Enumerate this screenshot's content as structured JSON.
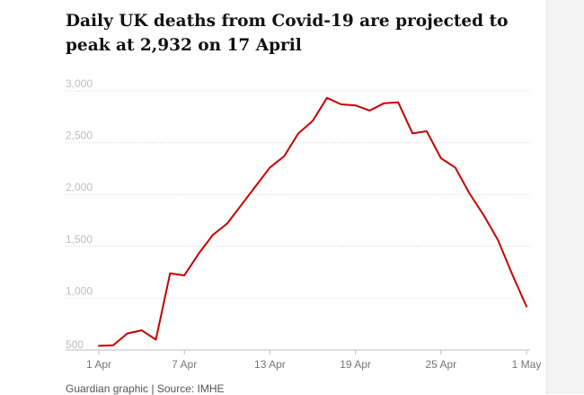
{
  "chart_data": {
    "type": "line",
    "title": "Daily UK deaths from Covid-19 are projected to peak at 2,932 on 17 April",
    "source": "Guardian graphic | Source: IMHE",
    "xlabel": "",
    "ylabel": "",
    "x_ticks": [
      "1 Apr",
      "7 Apr",
      "13 Apr",
      "19 Apr",
      "25 Apr",
      "1 May"
    ],
    "y_ticks": [
      "3,000",
      "2,500",
      "2,000",
      "1,500",
      "1,000",
      "500"
    ],
    "ylim": [
      500,
      3000
    ],
    "grid": true,
    "line_color": "#c70000",
    "series": [
      {
        "dates": [
          "1 Apr",
          "2 Apr",
          "3 Apr",
          "4 Apr",
          "5 Apr",
          "6 Apr",
          "7 Apr",
          "8 Apr",
          "9 Apr",
          "10 Apr",
          "11 Apr",
          "12 Apr",
          "13 Apr",
          "14 Apr",
          "15 Apr",
          "16 Apr",
          "17 Apr",
          "18 Apr",
          "19 Apr",
          "20 Apr",
          "21 Apr",
          "22 Apr",
          "23 Apr",
          "24 Apr",
          "25 Apr",
          "26 Apr",
          "27 Apr",
          "28 Apr",
          "29 Apr",
          "30 Apr",
          "1 May"
        ],
        "values": [
          540,
          545,
          660,
          690,
          600,
          1240,
          1220,
          1430,
          1610,
          1720,
          1900,
          2080,
          2260,
          2370,
          2590,
          2710,
          2932,
          2870,
          2860,
          2810,
          2880,
          2890,
          2590,
          2610,
          2350,
          2260,
          2010,
          1800,
          1560,
          1230,
          920
        ]
      }
    ]
  }
}
